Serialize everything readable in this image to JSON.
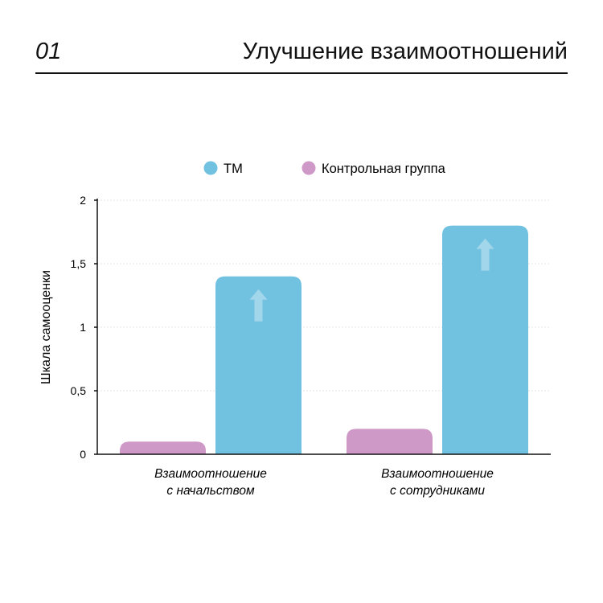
{
  "header": {
    "number": "01",
    "title": "Улучшение взаимоотношений"
  },
  "chart_data": {
    "type": "bar",
    "title": "",
    "xlabel": "",
    "ylabel": "Шкала самооценки",
    "ylim": [
      0,
      2
    ],
    "yticks": [
      0,
      0.5,
      1,
      1.5,
      2
    ],
    "ytick_labels": [
      "0",
      "0,5",
      "1",
      "1,5",
      "2"
    ],
    "grid": true,
    "legend_position": "top",
    "categories": [
      [
        "Взаимоотношение",
        "с начальством"
      ],
      [
        "Взаимоотношение",
        "с сотрудниками"
      ]
    ],
    "series": [
      {
        "name": "Контрольная группа",
        "color": "#cf99c7",
        "values": [
          0.1,
          0.2
        ]
      },
      {
        "name": "ТМ",
        "color": "#71c1e0",
        "values": [
          1.4,
          1.8
        ]
      }
    ],
    "legend_order": [
      "ТМ",
      "Контрольная группа"
    ],
    "annotations": "up-arrow-icon on TM bars"
  }
}
